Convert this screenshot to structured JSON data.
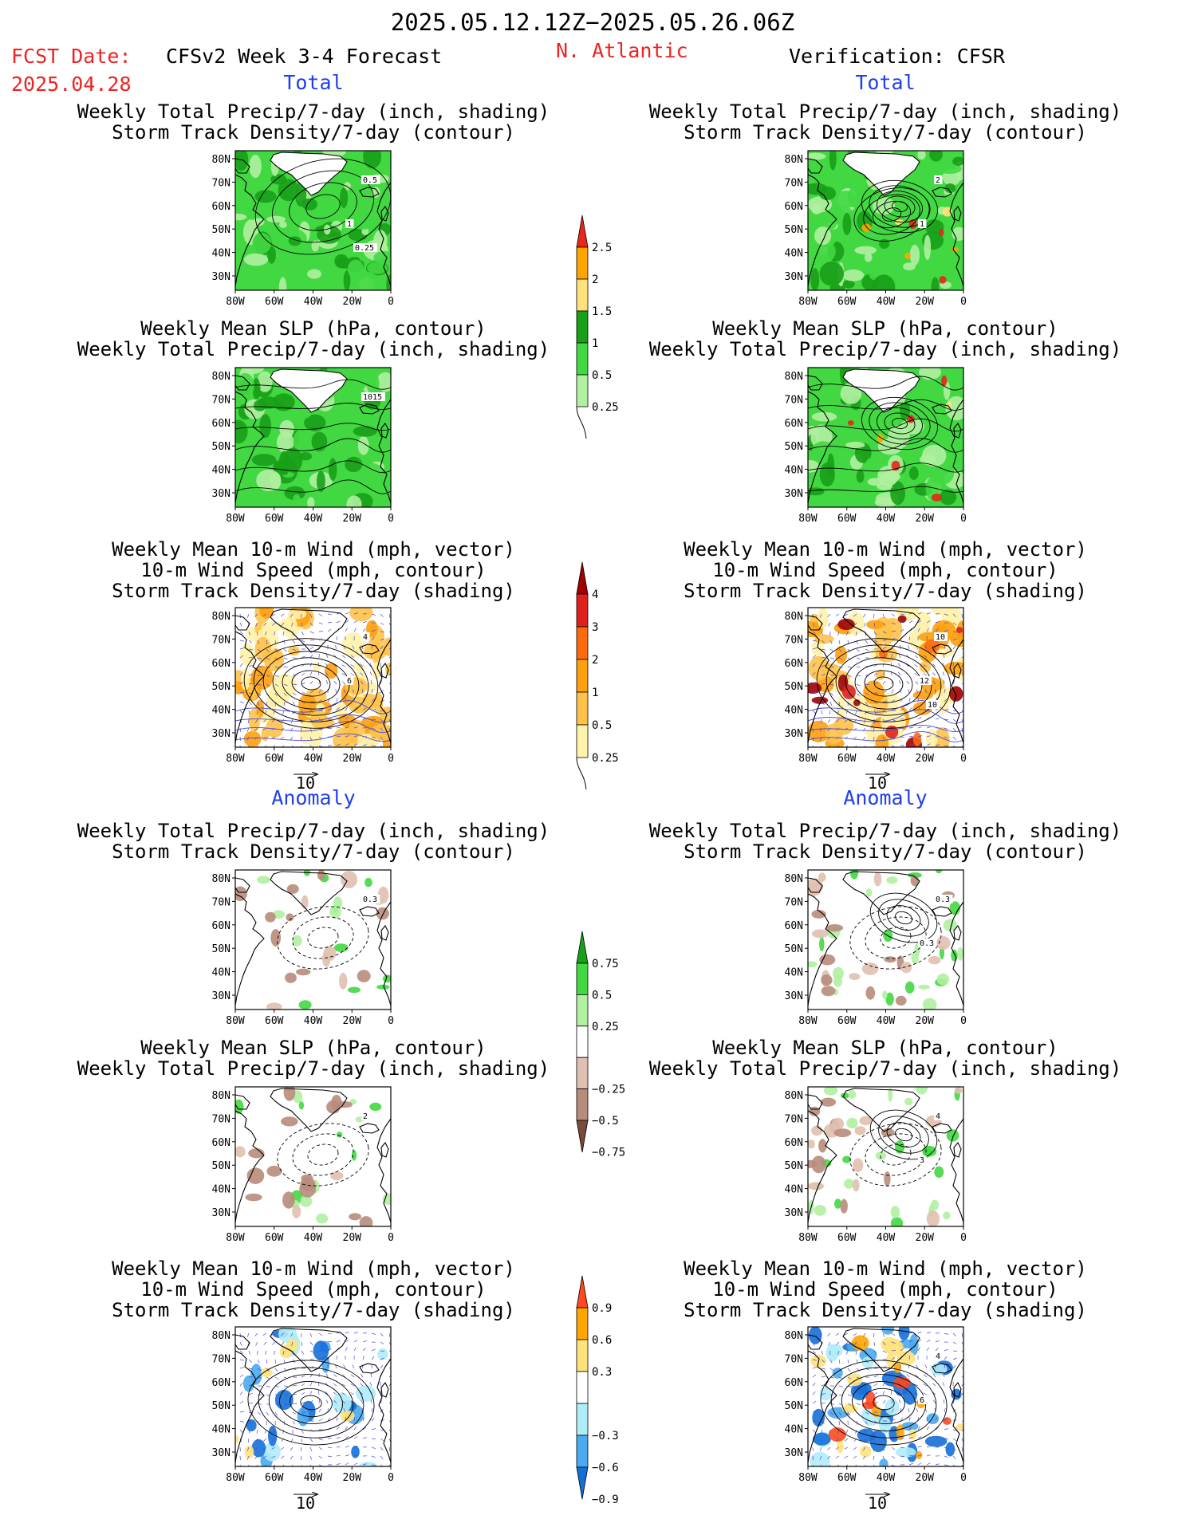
{
  "header": {
    "date_range": "2025.05.12.12Z−2025.05.26.06Z",
    "fcst_label": "FCST Date:",
    "fcst_date": "2025.04.28",
    "model": "CFSv2 Week 3-4 Forecast",
    "region": "N. Atlantic",
    "verification": "Verification: CFSR"
  },
  "section_labels": {
    "total": "Total",
    "anomaly": "Anomaly"
  },
  "panel_titles": {
    "precip": [
      "Weekly Total Precip/7-day (inch, shading)",
      "Storm Track Density/7-day (contour)"
    ],
    "slp": [
      "Weekly Mean SLP (hPa, contour)",
      "Weekly Total Precip/7-day (inch, shading)"
    ],
    "wind": [
      "Weekly Mean 10-m Wind (mph, vector)",
      "10-m Wind Speed (mph, contour)",
      "Storm Track Density/7-day (shading)"
    ]
  },
  "axes": {
    "lat_labels": [
      "80N",
      "70N",
      "60N",
      "50N",
      "40N",
      "30N"
    ],
    "lon_labels": [
      "80W",
      "60W",
      "40W",
      "20W",
      "0"
    ]
  },
  "vector_reference": "10",
  "contour_labels": {
    "fc_total_precip": [
      "0.5",
      "1",
      "0.25"
    ],
    "ob_total_precip": [
      "2",
      "1"
    ],
    "fc_total_slp": [
      "1015"
    ],
    "fc_total_wind": [
      "4",
      "6"
    ],
    "ob_total_wind": [
      "10",
      "12",
      "10"
    ],
    "fc_anom_precip": [
      "0.3"
    ],
    "ob_anom_precip": [
      "0.3",
      "0.3"
    ],
    "fc_anom_slp": [
      "2"
    ],
    "ob_anom_slp": [
      "4",
      "3"
    ],
    "ob_anom_wind": [
      "4",
      "6"
    ]
  },
  "colorbars": {
    "total_precip": {
      "labels": [
        "2.5",
        "2",
        "1.5",
        "1",
        "0.5",
        "0.25"
      ],
      "colors": [
        "#e8261a",
        "#ffa500",
        "#ffe27a",
        "#18a018",
        "#42d842",
        "#b0f0a0"
      ]
    },
    "total_storm": {
      "labels": [
        "4",
        "3",
        "2",
        "1",
        "0.5",
        "0.25"
      ],
      "colors": [
        "#a00000",
        "#e0201a",
        "#fd6a0e",
        "#fea00e",
        "#fec24a",
        "#fff2aa"
      ]
    },
    "anom_precip": {
      "labels": [
        "0.75",
        "0.5",
        "0.25",
        "−0.25",
        "−0.5",
        "−0.75"
      ],
      "colors": [
        "#18a018",
        "#42d842",
        "#b0f0a0",
        "#ffffff",
        "#e0c0b0",
        "#b88c7c",
        "#7a4a3a"
      ]
    },
    "anom_storm": {
      "labels": [
        "0.9",
        "0.6",
        "0.3",
        "−0.3",
        "−0.6",
        "−0.9"
      ],
      "colors": [
        "#fe4a1e",
        "#ffa500",
        "#ffe27a",
        "#ffffff",
        "#b0ecf8",
        "#4aaaf0",
        "#1470d8"
      ]
    }
  },
  "colors": {
    "header_red": "#ee2222",
    "label_blue": "#1f3ef0",
    "contour_blue": "#4a4adc"
  }
}
